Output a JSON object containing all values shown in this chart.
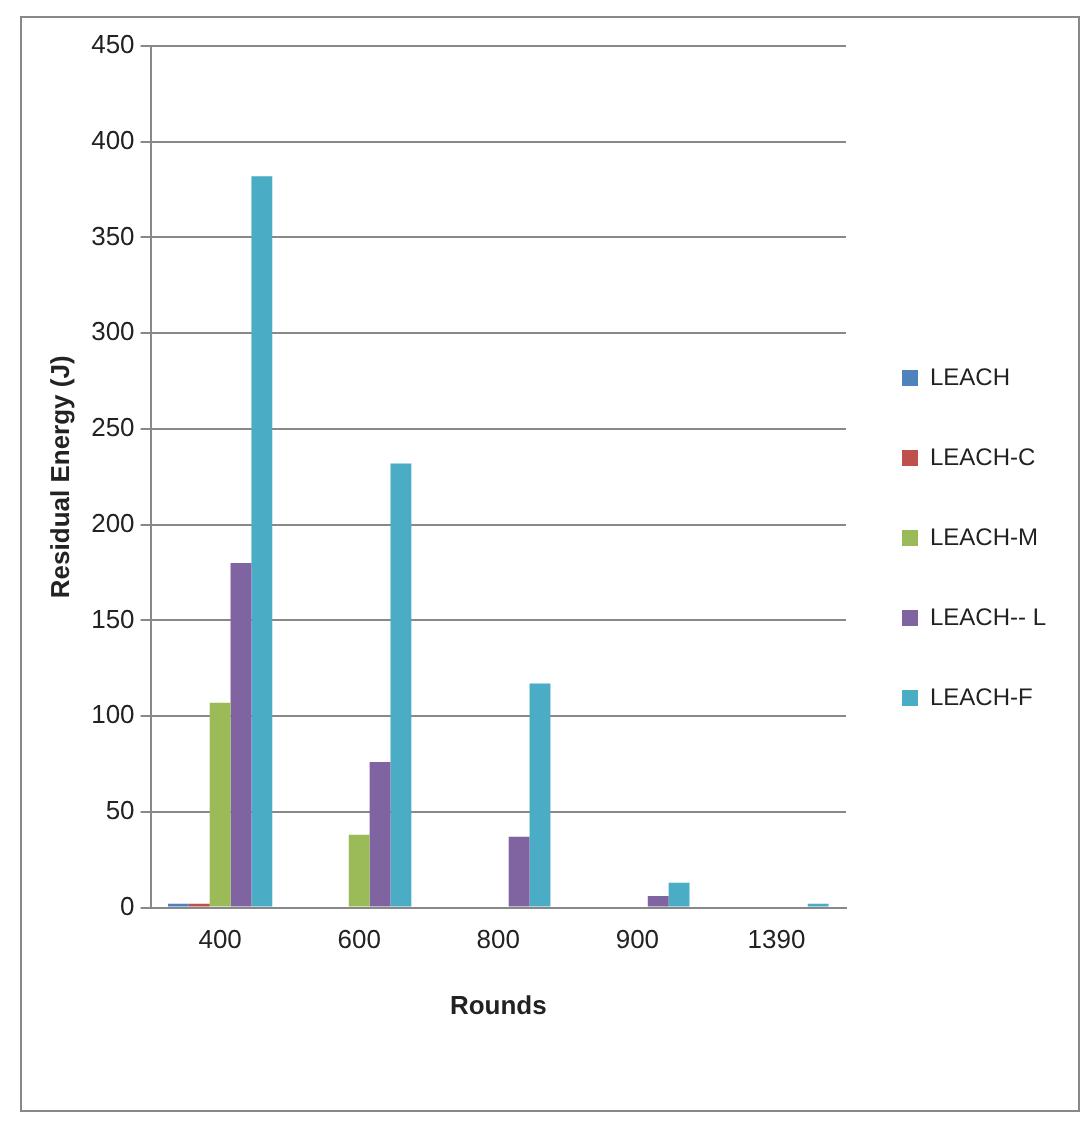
{
  "chart_data": {
    "type": "bar",
    "xlabel": "Rounds",
    "ylabel": "Residual Energy (J)",
    "categories": [
      "400",
      "600",
      "800",
      "900",
      "1390"
    ],
    "series": [
      {
        "name": "LEACH",
        "color": "#4f81bd",
        "values": [
          2,
          0,
          0,
          0,
          0
        ]
      },
      {
        "name": "LEACH-C",
        "color": "#c0504d",
        "values": [
          2,
          0,
          0,
          0,
          0
        ]
      },
      {
        "name": "LEACH-M",
        "color": "#9bbb59",
        "values": [
          107,
          38,
          0,
          0,
          0
        ]
      },
      {
        "name": "LEACH-- L",
        "color": "#8064a2",
        "values": [
          180,
          76,
          37,
          6,
          0
        ]
      },
      {
        "name": "LEACH-F",
        "color": "#4bacc6",
        "values": [
          382,
          232,
          117,
          13,
          2
        ]
      }
    ],
    "ylim": [
      0,
      450
    ],
    "yticks": [
      0,
      50,
      100,
      150,
      200,
      250,
      300,
      350,
      400,
      450
    ],
    "grid": "y",
    "legend": "right"
  }
}
